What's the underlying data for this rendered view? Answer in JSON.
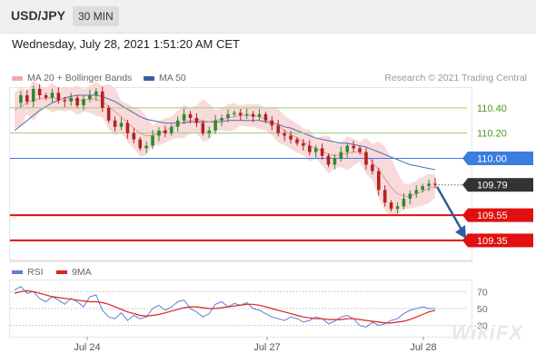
{
  "header": {
    "symbol": "USD/JPY",
    "interval": "30 MIN"
  },
  "timestamp": "Wednesday, July 28, 2021 1:51:20 AM CET",
  "legend": {
    "ma20_label": "MA 20 + Bollinger Bands",
    "ma50_label": "MA 50",
    "credit": "Research © 2021 Trading Central",
    "rsi_label": "RSI",
    "rsi_ma_label": "9MA"
  },
  "colors": {
    "bollinger_fill": "#f8d4d4",
    "ma20": "#e79a9a",
    "ma50": "#4f6fb3",
    "candle_up": "#2e8b2e",
    "candle_down": "#b22222",
    "resistance": "#9ccc7a",
    "pivot": "#3b7de0",
    "support": "#e01010",
    "current_price_bg": "#333333",
    "arrow": "#2c5d9e",
    "rsi": "#5a7fd6",
    "rsi_ma": "#e02020"
  },
  "watermark": "WikiFX",
  "chart_data": [
    {
      "type": "candlestick",
      "title": "USD/JPY 30 MIN",
      "x_tick_labels": [
        "Jul 24",
        "Jul 27",
        "Jul 28"
      ],
      "ylim": [
        109.22,
        110.55
      ],
      "current_price": 109.79,
      "levels": [
        {
          "label": "110.40",
          "value": 110.4,
          "kind": "resistance"
        },
        {
          "label": "110.20",
          "value": 110.2,
          "kind": "resistance"
        },
        {
          "label": "110.00",
          "value": 110.0,
          "kind": "pivot"
        },
        {
          "label": "109.79",
          "value": 109.79,
          "kind": "current"
        },
        {
          "label": "109.55",
          "value": 109.55,
          "kind": "support"
        },
        {
          "label": "109.35",
          "value": 109.35,
          "kind": "support"
        }
      ],
      "forecast_arrow": {
        "from": 109.79,
        "to": 109.35
      },
      "close_path": [
        110.44,
        110.5,
        110.45,
        110.55,
        110.5,
        110.48,
        110.52,
        110.46,
        110.45,
        110.48,
        110.42,
        110.47,
        110.5,
        110.53,
        110.4,
        110.3,
        110.25,
        110.28,
        110.2,
        110.15,
        110.08,
        110.1,
        110.18,
        110.22,
        110.2,
        110.25,
        110.3,
        110.35,
        110.32,
        110.28,
        110.2,
        110.22,
        110.3,
        110.32,
        110.35,
        110.36,
        110.34,
        110.35,
        110.33,
        110.35,
        110.3,
        110.26,
        110.2,
        110.18,
        110.15,
        110.12,
        110.1,
        110.05,
        110.08,
        110.02,
        109.95,
        110.0,
        110.05,
        110.1,
        110.08,
        110.05,
        109.95,
        109.9,
        109.75,
        109.65,
        109.6,
        109.62,
        109.68,
        109.72,
        109.75,
        109.78,
        109.8,
        109.79
      ],
      "ma20_path": [
        110.38,
        110.41,
        110.44,
        110.46,
        110.47,
        110.48,
        110.48,
        110.47,
        110.47,
        110.47,
        110.46,
        110.46,
        110.47,
        110.47,
        110.45,
        110.41,
        110.37,
        110.33,
        110.28,
        110.24,
        110.2,
        110.18,
        110.18,
        110.2,
        110.22,
        110.24,
        110.27,
        110.29,
        110.3,
        110.31,
        110.3,
        110.29,
        110.3,
        110.31,
        110.32,
        110.33,
        110.34,
        110.34,
        110.34,
        110.33,
        110.31,
        110.29,
        110.26,
        110.22,
        110.19,
        110.16,
        110.13,
        110.1,
        110.08,
        110.06,
        110.03,
        110.02,
        110.03,
        110.04,
        110.05,
        110.05,
        110.02,
        109.97,
        109.91,
        109.84,
        109.77,
        109.72,
        109.7,
        109.7,
        109.72,
        109.74,
        109.76,
        109.78
      ],
      "ma50_path": [
        110.22,
        110.26,
        110.3,
        110.34,
        110.38,
        110.41,
        110.44,
        110.46,
        110.48,
        110.49,
        110.5,
        110.5,
        110.5,
        110.5,
        110.49,
        110.47,
        110.45,
        110.42,
        110.39,
        110.36,
        110.33,
        110.31,
        110.3,
        110.29,
        110.28,
        110.28,
        110.28,
        110.28,
        110.29,
        110.29,
        110.29,
        110.29,
        110.29,
        110.29,
        110.3,
        110.3,
        110.3,
        110.3,
        110.3,
        110.3,
        110.29,
        110.28,
        110.27,
        110.25,
        110.24,
        110.22,
        110.2,
        110.18,
        110.16,
        110.15,
        110.14,
        110.13,
        110.12,
        110.12,
        110.11,
        110.1,
        110.09,
        110.07,
        110.05,
        110.03,
        110.01,
        109.99,
        109.97,
        109.95,
        109.94,
        109.93,
        109.92,
        109.91
      ]
    },
    {
      "type": "line",
      "title": "RSI",
      "ylim": [
        20,
        80
      ],
      "y_tick_labels": [
        "70",
        "50",
        "30"
      ],
      "y_ticks": [
        70,
        50,
        30
      ],
      "series": [
        {
          "name": "RSI",
          "values": [
            72,
            76,
            68,
            70,
            62,
            58,
            64,
            60,
            55,
            62,
            58,
            52,
            64,
            66,
            48,
            40,
            38,
            45,
            36,
            42,
            38,
            40,
            50,
            54,
            48,
            52,
            58,
            60,
            50,
            46,
            40,
            44,
            55,
            58,
            52,
            56,
            54,
            57,
            50,
            48,
            44,
            40,
            38,
            36,
            40,
            38,
            34,
            36,
            40,
            38,
            32,
            35,
            40,
            42,
            38,
            30,
            28,
            34,
            30,
            32,
            36,
            38,
            44,
            48,
            50,
            52,
            50,
            50
          ]
        },
        {
          "name": "9MA",
          "values": [
            68,
            70,
            71,
            70,
            68,
            66,
            64,
            63,
            62,
            61,
            60,
            59,
            58,
            58,
            57,
            55,
            52,
            49,
            46,
            44,
            42,
            41,
            42,
            43,
            45,
            47,
            49,
            51,
            52,
            52,
            51,
            50,
            50,
            51,
            52,
            53,
            54,
            55,
            55,
            54,
            52,
            50,
            48,
            46,
            44,
            42,
            40,
            39,
            38,
            38,
            37,
            37,
            37,
            38,
            38,
            37,
            36,
            35,
            34,
            33,
            33,
            34,
            35,
            37,
            40,
            43,
            46,
            48
          ]
        }
      ]
    }
  ]
}
